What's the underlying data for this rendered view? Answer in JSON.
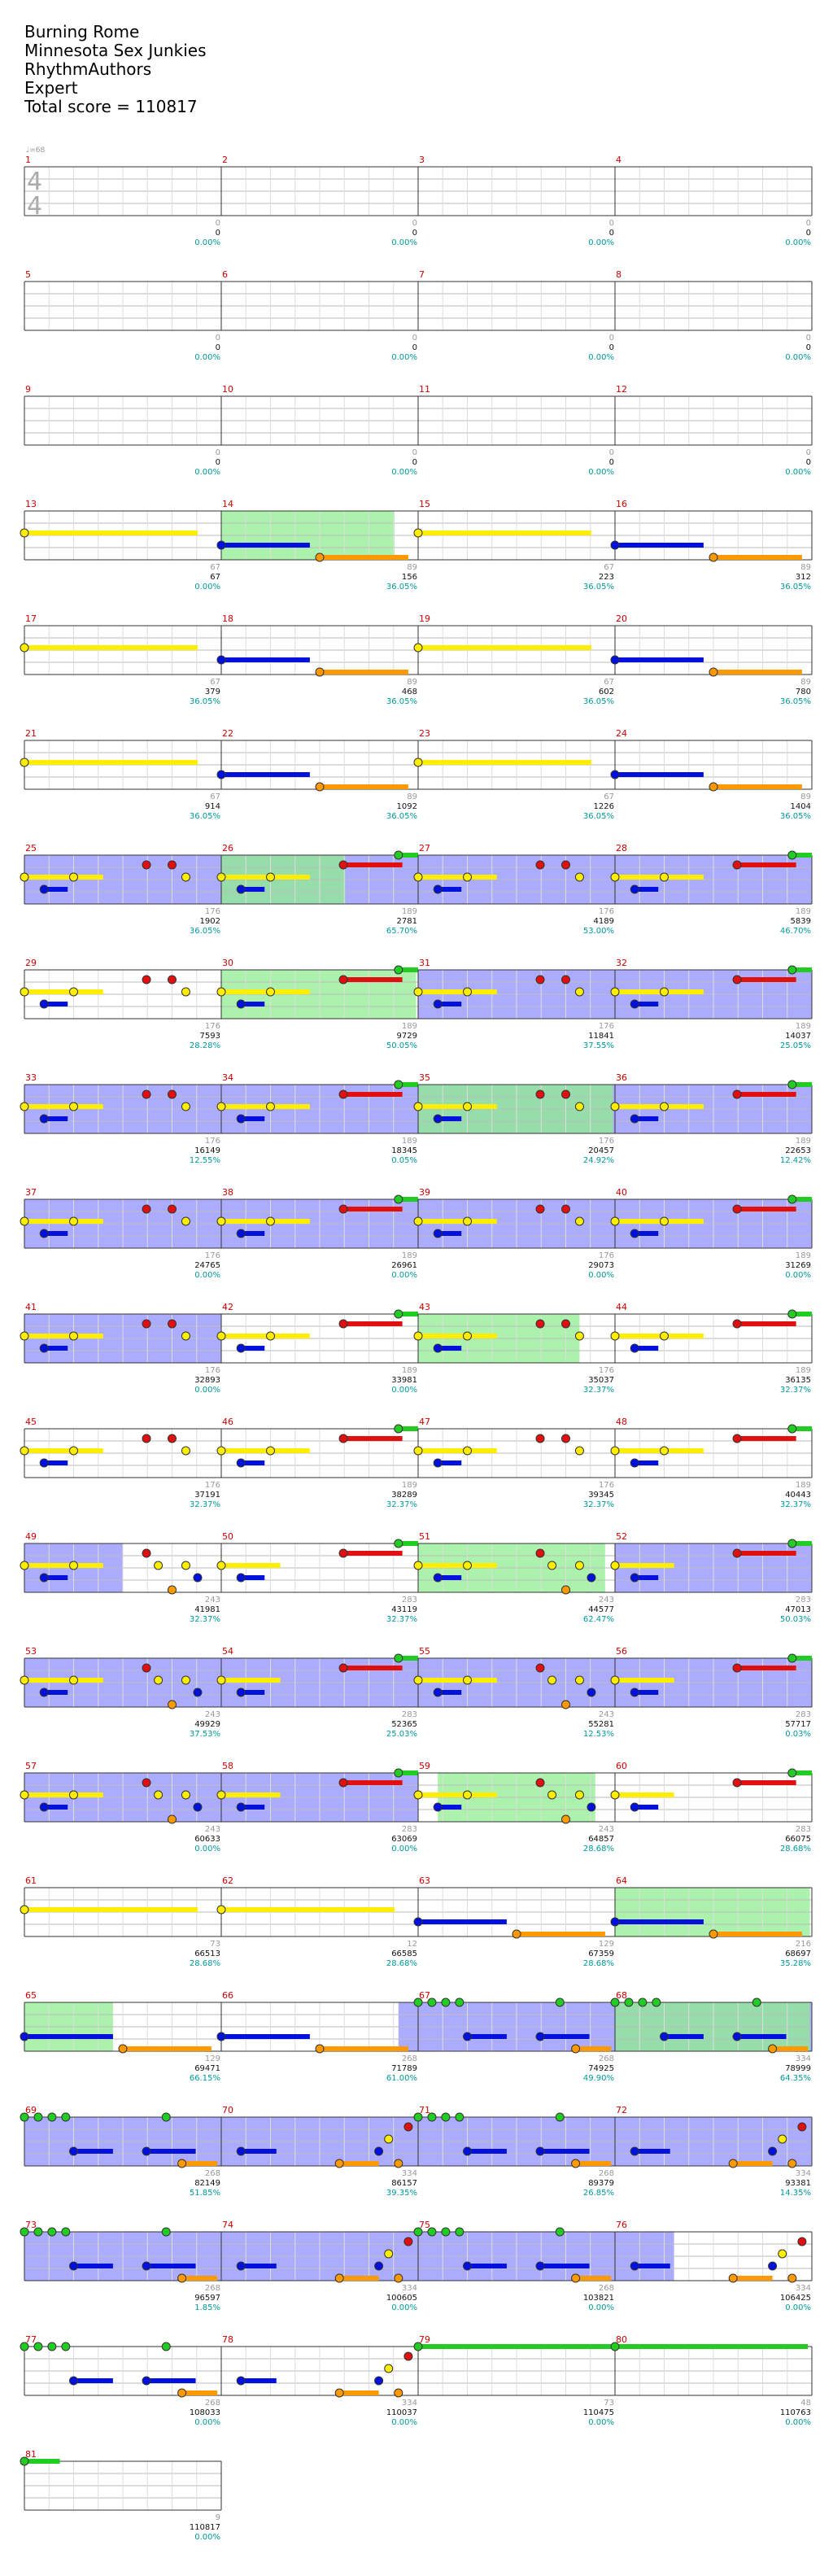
{
  "song": {
    "title": "Burning Rome",
    "artist": "Minnesota Sex Junkies",
    "charter": "RhythmAuthors",
    "difficulty": "Expert",
    "total_score_label": "Total score = 110817"
  },
  "tempo_label": "♩=68",
  "time_signature": {
    "top": "4",
    "bottom": "4"
  },
  "colors": {
    "green": "#22cc22",
    "red": "#e01010",
    "yellow": "#ffee00",
    "blue": "#0010dd",
    "orange": "#ff9900",
    "starpower": "#8080ff",
    "overdrive_phrase": "#90ee90",
    "measure_number": "#cc0000",
    "score_pct": "#009999",
    "base_score": "#999999"
  },
  "measures": [
    {
      "n": "1",
      "base": "0",
      "score": "0",
      "pct": "0.00%"
    },
    {
      "n": "2",
      "base": "0",
      "score": "0",
      "pct": "0.00%"
    },
    {
      "n": "3",
      "base": "0",
      "score": "0",
      "pct": "0.00%"
    },
    {
      "n": "4",
      "base": "0",
      "score": "0",
      "pct": "0.00%"
    },
    {
      "n": "5",
      "base": "0",
      "score": "0",
      "pct": "0.00%"
    },
    {
      "n": "6",
      "base": "0",
      "score": "0",
      "pct": "0.00%"
    },
    {
      "n": "7",
      "base": "0",
      "score": "0",
      "pct": "0.00%"
    },
    {
      "n": "8",
      "base": "0",
      "score": "0",
      "pct": "0.00%"
    },
    {
      "n": "9",
      "base": "0",
      "score": "0",
      "pct": "0.00%"
    },
    {
      "n": "10",
      "base": "0",
      "score": "0",
      "pct": "0.00%"
    },
    {
      "n": "11",
      "base": "0",
      "score": "0",
      "pct": "0.00%"
    },
    {
      "n": "12",
      "base": "0",
      "score": "0",
      "pct": "0.00%"
    },
    {
      "n": "13",
      "base": "67",
      "score": "67",
      "pct": "0.00%"
    },
    {
      "n": "14",
      "base": "89",
      "score": "156",
      "pct": "36.05%"
    },
    {
      "n": "15",
      "base": "67",
      "score": "223",
      "pct": "36.05%"
    },
    {
      "n": "16",
      "base": "89",
      "score": "312",
      "pct": "36.05%"
    },
    {
      "n": "17",
      "base": "67",
      "score": "379",
      "pct": "36.05%"
    },
    {
      "n": "18",
      "base": "89",
      "score": "468",
      "pct": "36.05%"
    },
    {
      "n": "19",
      "base": "67",
      "score": "602",
      "pct": "36.05%"
    },
    {
      "n": "20",
      "base": "89",
      "score": "780",
      "pct": "36.05%"
    },
    {
      "n": "21",
      "base": "67",
      "score": "914",
      "pct": "36.05%"
    },
    {
      "n": "22",
      "base": "89",
      "score": "1092",
      "pct": "36.05%"
    },
    {
      "n": "23",
      "base": "67",
      "score": "1226",
      "pct": "36.05%"
    },
    {
      "n": "24",
      "base": "89",
      "score": "1404",
      "pct": "36.05%"
    },
    {
      "n": "25",
      "base": "176",
      "score": "1902",
      "pct": "36.05%"
    },
    {
      "n": "26",
      "base": "189",
      "score": "2781",
      "pct": "65.70%"
    },
    {
      "n": "27",
      "base": "176",
      "score": "4189",
      "pct": "53.00%"
    },
    {
      "n": "28",
      "base": "189",
      "score": "5839",
      "pct": "46.70%"
    },
    {
      "n": "29",
      "base": "176",
      "score": "7593",
      "pct": "28.28%"
    },
    {
      "n": "30",
      "base": "189",
      "score": "9729",
      "pct": "50.05%"
    },
    {
      "n": "31",
      "base": "176",
      "score": "11841",
      "pct": "37.55%"
    },
    {
      "n": "32",
      "base": "189",
      "score": "14037",
      "pct": "25.05%"
    },
    {
      "n": "33",
      "base": "176",
      "score": "16149",
      "pct": "12.55%"
    },
    {
      "n": "34",
      "base": "189",
      "score": "18345",
      "pct": "0.05%"
    },
    {
      "n": "35",
      "base": "176",
      "score": "20457",
      "pct": "24.92%"
    },
    {
      "n": "36",
      "base": "189",
      "score": "22653",
      "pct": "12.42%"
    },
    {
      "n": "37",
      "base": "176",
      "score": "24765",
      "pct": "0.00%"
    },
    {
      "n": "38",
      "base": "189",
      "score": "26961",
      "pct": "0.00%"
    },
    {
      "n": "39",
      "base": "176",
      "score": "29073",
      "pct": "0.00%"
    },
    {
      "n": "40",
      "base": "189",
      "score": "31269",
      "pct": "0.00%"
    },
    {
      "n": "41",
      "base": "176",
      "score": "32893",
      "pct": "0.00%"
    },
    {
      "n": "42",
      "base": "189",
      "score": "33981",
      "pct": "0.00%"
    },
    {
      "n": "43",
      "base": "176",
      "score": "35037",
      "pct": "32.37%"
    },
    {
      "n": "44",
      "base": "189",
      "score": "36135",
      "pct": "32.37%"
    },
    {
      "n": "45",
      "base": "176",
      "score": "37191",
      "pct": "32.37%"
    },
    {
      "n": "46",
      "base": "189",
      "score": "38289",
      "pct": "32.37%"
    },
    {
      "n": "47",
      "base": "176",
      "score": "39345",
      "pct": "32.37%"
    },
    {
      "n": "48",
      "base": "189",
      "score": "40443",
      "pct": "32.37%"
    },
    {
      "n": "49",
      "base": "243",
      "score": "41981",
      "pct": "32.37%"
    },
    {
      "n": "50",
      "base": "283",
      "score": "43119",
      "pct": "32.37%"
    },
    {
      "n": "51",
      "base": "243",
      "score": "44577",
      "pct": "62.47%"
    },
    {
      "n": "52",
      "base": "283",
      "score": "47013",
      "pct": "50.03%"
    },
    {
      "n": "53",
      "base": "243",
      "score": "49929",
      "pct": "37.53%"
    },
    {
      "n": "54",
      "base": "283",
      "score": "52365",
      "pct": "25.03%"
    },
    {
      "n": "55",
      "base": "243",
      "score": "55281",
      "pct": "12.53%"
    },
    {
      "n": "56",
      "base": "283",
      "score": "57717",
      "pct": "0.03%"
    },
    {
      "n": "57",
      "base": "243",
      "score": "60633",
      "pct": "0.00%"
    },
    {
      "n": "58",
      "base": "283",
      "score": "63069",
      "pct": "0.00%"
    },
    {
      "n": "59",
      "base": "243",
      "score": "64857",
      "pct": "28.68%"
    },
    {
      "n": "60",
      "base": "283",
      "score": "66075",
      "pct": "28.68%"
    },
    {
      "n": "61",
      "base": "73",
      "score": "66513",
      "pct": "28.68%"
    },
    {
      "n": "62",
      "base": "12",
      "score": "66585",
      "pct": "28.68%"
    },
    {
      "n": "63",
      "base": "129",
      "score": "67359",
      "pct": "28.68%"
    },
    {
      "n": "64",
      "base": "216",
      "score": "68697",
      "pct": "35.28%"
    },
    {
      "n": "65",
      "base": "129",
      "score": "69471",
      "pct": "66.15%"
    },
    {
      "n": "66",
      "base": "268",
      "score": "71789",
      "pct": "61.00%"
    },
    {
      "n": "67",
      "base": "268",
      "score": "74925",
      "pct": "49.90%"
    },
    {
      "n": "68",
      "base": "334",
      "score": "78999",
      "pct": "64.35%"
    },
    {
      "n": "69",
      "base": "268",
      "score": "82149",
      "pct": "51.85%"
    },
    {
      "n": "70",
      "base": "334",
      "score": "86157",
      "pct": "39.35%"
    },
    {
      "n": "71",
      "base": "268",
      "score": "89379",
      "pct": "26.85%"
    },
    {
      "n": "72",
      "base": "334",
      "score": "93381",
      "pct": "14.35%"
    },
    {
      "n": "73",
      "base": "268",
      "score": "96597",
      "pct": "1.85%"
    },
    {
      "n": "74",
      "base": "334",
      "score": "100605",
      "pct": "0.00%"
    },
    {
      "n": "75",
      "base": "268",
      "score": "103821",
      "pct": "0.00%"
    },
    {
      "n": "76",
      "base": "334",
      "score": "106425",
      "pct": "0.00%"
    },
    {
      "n": "77",
      "base": "268",
      "score": "108033",
      "pct": "0.00%"
    },
    {
      "n": "78",
      "base": "334",
      "score": "110037",
      "pct": "0.00%"
    },
    {
      "n": "79",
      "base": "73",
      "score": "110475",
      "pct": "0.00%"
    },
    {
      "n": "80",
      "base": "48",
      "score": "110763",
      "pct": "0.00%"
    },
    {
      "n": "81",
      "base": "9",
      "score": "110817",
      "pct": "0.00%"
    }
  ],
  "starpower_ranges": [
    [
      25,
      29
    ],
    [
      31,
      42
    ],
    [
      49,
      49.5
    ],
    [
      52,
      59
    ],
    [
      66.9,
      76.3
    ]
  ],
  "overdrive_phrases": [
    [
      14,
      14.88
    ],
    [
      26,
      26.63
    ],
    [
      30,
      30.99
    ],
    [
      35,
      35.99
    ],
    [
      43,
      43.82
    ],
    [
      51,
      51.95
    ],
    [
      59.1,
      59.9
    ],
    [
      64,
      64.99
    ],
    [
      65,
      65.45
    ],
    [
      68,
      68.99
    ]
  ],
  "note_patterns": {
    "odd_a": [
      {
        "t": 0.0,
        "c": "yellow",
        "s": 0.4
      },
      {
        "t": 0.1,
        "c": "blue",
        "s": 0.12
      },
      {
        "t": 0.25,
        "c": "yellow",
        "s": 0.0
      },
      {
        "t": 0.62,
        "c": "red",
        "s": 0.0
      },
      {
        "t": 0.75,
        "c": "red",
        "s": 0.0
      },
      {
        "t": 0.82,
        "c": "yellow",
        "s": 0.0
      }
    ],
    "even_a": [
      {
        "t": 0.0,
        "c": "yellow",
        "s": 0.45
      },
      {
        "t": 0.1,
        "c": "blue",
        "s": 0.12
      },
      {
        "t": 0.25,
        "c": "yellow",
        "s": 0.0
      },
      {
        "t": 0.62,
        "c": "red",
        "s": 0.3
      },
      {
        "t": 0.9,
        "c": "green",
        "s": 0.1
      }
    ],
    "sustain_y": [
      {
        "t": 0.0,
        "c": "yellow",
        "s": 0.88
      }
    ],
    "sustain_bo": [
      {
        "t": 0.0,
        "c": "blue",
        "s": 0.45
      },
      {
        "t": 0.5,
        "c": "orange",
        "s": 0.45
      }
    ],
    "odd_b": [
      {
        "t": 0.0,
        "c": "yellow",
        "s": 0.4
      },
      {
        "t": 0.1,
        "c": "blue",
        "s": 0.12
      },
      {
        "t": 0.25,
        "c": "yellow",
        "s": 0.0
      },
      {
        "t": 0.62,
        "c": "red",
        "s": 0.0
      },
      {
        "t": 0.68,
        "c": "yellow",
        "s": 0.0
      },
      {
        "t": 0.75,
        "c": "orange",
        "s": 0.0
      },
      {
        "t": 0.82,
        "c": "yellow",
        "s": 0.0
      },
      {
        "t": 0.88,
        "c": "blue",
        "s": 0.0
      }
    ],
    "even_b": [
      {
        "t": 0.0,
        "c": "yellow",
        "s": 0.3
      },
      {
        "t": 0.1,
        "c": "blue",
        "s": 0.12
      },
      {
        "t": 0.62,
        "c": "red",
        "s": 0.3
      },
      {
        "t": 0.9,
        "c": "green",
        "s": 0.1
      }
    ],
    "green_row": [
      {
        "t": 0.0,
        "c": "green",
        "s": 0.0
      },
      {
        "t": 0.07,
        "c": "green",
        "s": 0.0
      },
      {
        "t": 0.14,
        "c": "green",
        "s": 0.0
      },
      {
        "t": 0.21,
        "c": "green",
        "s": 0.0
      },
      {
        "t": 0.25,
        "c": "blue",
        "s": 0.2
      },
      {
        "t": 0.62,
        "c": "blue",
        "s": 0.25
      },
      {
        "t": 0.72,
        "c": "green",
        "s": 0.0
      },
      {
        "t": 0.8,
        "c": "orange",
        "s": 0.18
      }
    ],
    "climb": [
      {
        "t": 0.1,
        "c": "blue",
        "s": 0.18
      },
      {
        "t": 0.6,
        "c": "orange",
        "s": 0.2
      },
      {
        "t": 0.8,
        "c": "blue",
        "s": 0.0
      },
      {
        "t": 0.85,
        "c": "yellow",
        "s": 0.0
      },
      {
        "t": 0.9,
        "c": "orange",
        "s": 0.0
      },
      {
        "t": 0.95,
        "c": "red",
        "s": 0.0
      }
    ],
    "last_long": [
      {
        "t": 0.0,
        "c": "green",
        "s": 0.98
      }
    ],
    "last_short": [
      {
        "t": 0.0,
        "c": "green",
        "s": 0.18
      }
    ]
  },
  "measure_patterns": {
    "13": "sustain_y",
    "14": "sustain_bo",
    "15": "sustain_y",
    "16": "sustain_bo",
    "17": "sustain_y",
    "18": "sustain_bo",
    "19": "sustain_y",
    "20": "sustain_bo",
    "21": "sustain_y",
    "22": "sustain_bo",
    "23": "sustain_y",
    "24": "sustain_bo",
    "25": "odd_a",
    "26": "even_a",
    "27": "odd_a",
    "28": "even_a",
    "29": "odd_a",
    "30": "even_a",
    "31": "odd_a",
    "32": "even_a",
    "33": "odd_a",
    "34": "even_a",
    "35": "odd_a",
    "36": "even_a",
    "37": "odd_a",
    "38": "even_a",
    "39": "odd_a",
    "40": "even_a",
    "41": "odd_a",
    "42": "even_a",
    "43": "odd_a",
    "44": "even_a",
    "45": "odd_a",
    "46": "even_a",
    "47": "odd_a",
    "48": "even_a",
    "49": "odd_b",
    "50": "even_b",
    "51": "odd_b",
    "52": "even_b",
    "53": "odd_b",
    "54": "even_b",
    "55": "odd_b",
    "56": "even_b",
    "57": "odd_b",
    "58": "even_b",
    "59": "odd_b",
    "60": "even_b",
    "61": "sustain_y",
    "62": "sustain_y",
    "63": "sustain_bo",
    "64": "sustain_bo",
    "65": "sustain_bo",
    "66": "sustain_bo",
    "67": "green_row",
    "68": "green_row",
    "69": "green_row",
    "70": "climb",
    "71": "green_row",
    "72": "climb",
    "73": "green_row",
    "74": "climb",
    "75": "green_row",
    "76": "climb",
    "77": "green_row",
    "78": "climb",
    "79": "last_long",
    "80": "last_long",
    "81": "last_short"
  }
}
